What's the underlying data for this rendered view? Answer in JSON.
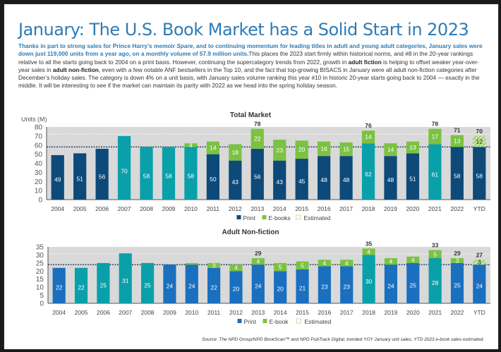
{
  "header": {
    "title": "January: The U.S. Book Market has a Solid Start in 2023"
  },
  "intro": {
    "highlight": "Thanks in part to strong sales for Prince Harry’s memoir ",
    "highlight_italic": "Spare",
    "highlight_rest": ", and to continuing momentum for leading titles in adult and young adult categories, January sales were down just 119,000 units from a year ago, on a monthly volume of 57.9 million units.",
    "text1": "This places the 2023 start firmly within historical norms, and #8 in the 20-year rankings relative to all the starts going back to 2004 on a print basis. However, continuing the supercategory trends from 2022, growth in ",
    "bold1": "adult fiction",
    "text2": " is helping to offset weaker year-over-year sales in ",
    "bold2": "adult non-fiction",
    "text3": ", even with a few notable ANF bestsellers in the Top 10, and the fact that top-growing BISACS in January were all adult non-fiction categories after December’s holiday sales. The category is down 4% on a unit basis, with January sales volume ranking this year #10 in historic 20-year starts going back to 2004 — exactly in the middle. It will be interesting to see if the market can maintain its parity with 2022 as we head into the spring holiday season."
  },
  "colors": {
    "title_blue": "#2f7bb5",
    "print_total": "#0d4a7a",
    "print_total_alt": "#0aa0aa",
    "print_anf": "#1a6fbf",
    "print_anf_alt": "#0aa0aa",
    "ebook": "#7cc242",
    "plot_bg": "#d9d9d9"
  },
  "source": "Source: The NPD Group/NPD BookScan™ and NPD PubTrack Digital, trended YOY January unit sales. YTD 2023 e-book sales estimated.",
  "chart_data": [
    {
      "type": "bar",
      "stacked": true,
      "title": "Total Market",
      "ylabel": "Units (M)",
      "xlabel": "",
      "ylim": [
        0,
        80
      ],
      "yticks": [
        0,
        10,
        20,
        30,
        40,
        50,
        60,
        70,
        80
      ],
      "reference_line": 58,
      "grid": false,
      "legend": "bottom-center",
      "legend_labels": [
        "Print",
        "E-books",
        "Estimated"
      ],
      "categories": [
        "2004",
        "2005",
        "2006",
        "2007",
        "2008",
        "2009",
        "2010",
        "2011",
        "2012",
        "2013",
        "2014",
        "2015",
        "2016",
        "2017",
        "2018",
        "2019",
        "2020",
        "2021",
        "2022",
        "YTD"
      ],
      "series": [
        {
          "name": "Print",
          "values": [
            49,
            51,
            56,
            70,
            58,
            58,
            58,
            50,
            43,
            56,
            43,
            45,
            48,
            48,
            62,
            48,
            51,
            61,
            58,
            58
          ]
        },
        {
          "name": "E-books",
          "values": [
            0,
            0,
            0,
            0,
            0,
            0,
            4,
            14,
            18,
            22,
            23,
            20,
            16,
            15,
            14,
            14,
            13,
            17,
            13,
            12
          ]
        }
      ],
      "highlight_print": [
        false,
        false,
        false,
        true,
        true,
        true,
        true,
        false,
        false,
        false,
        false,
        false,
        false,
        false,
        true,
        false,
        false,
        true,
        false,
        false
      ],
      "estimated": [
        false,
        false,
        false,
        false,
        false,
        false,
        false,
        false,
        false,
        false,
        false,
        false,
        false,
        false,
        false,
        false,
        false,
        false,
        false,
        true
      ],
      "total_labels": [
        "",
        "",
        "",
        "",
        "",
        "",
        "",
        "",
        "",
        "78",
        "",
        "",
        "",
        "",
        "76",
        "",
        "",
        "78",
        "71",
        "70"
      ]
    },
    {
      "type": "bar",
      "stacked": true,
      "title": "Adult Non-fiction",
      "ylabel": "",
      "xlabel": "",
      "ylim": [
        0,
        35
      ],
      "yticks": [
        0,
        5,
        10,
        15,
        20,
        25,
        30,
        35
      ],
      "reference_line": 24,
      "grid": false,
      "legend": "bottom-center",
      "legend_labels": [
        "Print",
        "E-book",
        "Estimated"
      ],
      "categories": [
        "2004",
        "2005",
        "2006",
        "2007",
        "2008",
        "2009",
        "2010",
        "2011",
        "2012",
        "2013",
        "2014",
        "2015",
        "2016",
        "2017",
        "2018",
        "2019",
        "2020",
        "2021",
        "2022",
        "YTD"
      ],
      "series": [
        {
          "name": "Print",
          "values": [
            22,
            22,
            25,
            31,
            25,
            24,
            24,
            22,
            20,
            24,
            20,
            21,
            23,
            23,
            30,
            24,
            25,
            28,
            25,
            24
          ]
        },
        {
          "name": "E-book",
          "values": [
            0,
            0,
            0,
            0,
            0,
            0,
            1,
            3,
            4,
            4,
            5,
            5,
            4,
            4,
            4,
            4,
            4,
            5,
            3,
            3
          ]
        }
      ],
      "highlight_print": [
        false,
        true,
        true,
        true,
        true,
        false,
        false,
        false,
        false,
        false,
        false,
        false,
        false,
        false,
        true,
        false,
        false,
        true,
        false,
        false
      ],
      "estimated": [
        false,
        false,
        false,
        false,
        false,
        false,
        false,
        false,
        false,
        false,
        false,
        false,
        false,
        false,
        false,
        false,
        false,
        false,
        false,
        true
      ],
      "total_labels": [
        "",
        "",
        "",
        "",
        "",
        "",
        "",
        "",
        "",
        "29",
        "",
        "",
        "",
        "",
        "35",
        "",
        "",
        "33",
        "29",
        "27"
      ]
    }
  ]
}
